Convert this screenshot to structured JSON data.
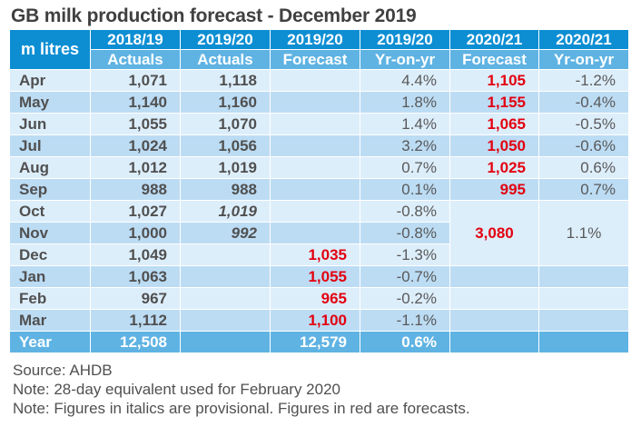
{
  "title": "GB milk production forecast - December 2019",
  "table": {
    "corner_label": "m litres",
    "header_years": [
      "2018/19",
      "2019/20",
      "2019/20",
      "2019/20",
      "2020/21",
      "2020/21"
    ],
    "header_types": [
      "Actuals",
      "Actuals",
      "Forecast",
      "Yr-on-yr",
      "Forecast",
      "Yr-on-yr"
    ],
    "rows": [
      {
        "month": "Apr",
        "a1819": "1,071",
        "a1920": "1,118",
        "f1920": "",
        "yoy1920": "4.4%",
        "f2021": "1,105",
        "yoy2021": "-1.2%"
      },
      {
        "month": "May",
        "a1819": "1,140",
        "a1920": "1,160",
        "f1920": "",
        "yoy1920": "1.8%",
        "f2021": "1,155",
        "yoy2021": "-0.4%"
      },
      {
        "month": "Jun",
        "a1819": "1,055",
        "a1920": "1,070",
        "f1920": "",
        "yoy1920": "1.4%",
        "f2021": "1,065",
        "yoy2021": "-0.5%"
      },
      {
        "month": "Jul",
        "a1819": "1,024",
        "a1920": "1,056",
        "f1920": "",
        "yoy1920": "3.2%",
        "f2021": "1,050",
        "yoy2021": "-0.6%"
      },
      {
        "month": "Aug",
        "a1819": "1,012",
        "a1920": "1,019",
        "f1920": "",
        "yoy1920": "0.7%",
        "f2021": "1,025",
        "yoy2021": "0.6%"
      },
      {
        "month": "Sep",
        "a1819": "988",
        "a1920": "988",
        "f1920": "",
        "yoy1920": "0.1%",
        "f2021": "995",
        "yoy2021": "0.7%"
      },
      {
        "month": "Oct",
        "a1819": "1,027",
        "a1920": "1,019",
        "f1920": "",
        "yoy1920": "-0.8%"
      },
      {
        "month": "Nov",
        "a1819": "1,000",
        "a1920": "992",
        "f1920": "",
        "yoy1920": "-0.8%"
      },
      {
        "month": "Dec",
        "a1819": "1,049",
        "a1920": "",
        "f1920": "1,035",
        "yoy1920": "-1.3%"
      },
      {
        "month": "Jan",
        "a1819": "1,063",
        "a1920": "",
        "f1920": "1,055",
        "yoy1920": "-0.7%",
        "f2021": "",
        "yoy2021": ""
      },
      {
        "month": "Feb",
        "a1819": "967",
        "a1920": "",
        "f1920": "965",
        "yoy1920": "-0.2%",
        "f2021": "",
        "yoy2021": ""
      },
      {
        "month": "Mar",
        "a1819": "1,112",
        "a1920": "",
        "f1920": "1,100",
        "yoy1920": "-1.1%",
        "f2021": "",
        "yoy2021": ""
      }
    ],
    "oct_dec_merged": {
      "f2021": "3,080",
      "yoy2021": "1.1%"
    },
    "total": {
      "month": "Year",
      "a1819": "12,508",
      "a1920": "",
      "f1920": "12,579",
      "yoy1920": "0.6%",
      "f2021": "",
      "yoy2021": ""
    }
  },
  "notes": [
    "Source: AHDB",
    "Note: 28-day equivalent used for February 2020",
    "Note: Figures in italics are provisional. Figures in red are forecasts."
  ],
  "colors": {
    "header_dark": "#0d8ed3",
    "header_light": "#5fb3e3",
    "row_light": "#ddeefb",
    "row_dark": "#bcdcf4",
    "forecast_red": "#e3000f"
  }
}
